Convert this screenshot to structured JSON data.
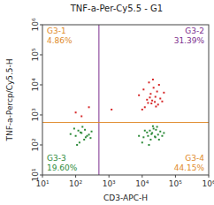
{
  "chart_data": {
    "type": "scatter",
    "title": "TNF-a-Per-Cy5.5 - G1",
    "x_label": "CD3-APC-H",
    "y_label": "TNF-a-Percp/Cy5.5-H",
    "log": true,
    "xlim": [
      10,
      1000000
    ],
    "ylim": [
      10,
      1000000
    ],
    "xticks": [
      {
        "value": 10,
        "label": "10¹"
      },
      {
        "value": 100,
        "label": "10²"
      },
      {
        "value": 1000,
        "label": "10³"
      },
      {
        "value": 10000,
        "label": "10⁴"
      },
      {
        "value": 100000,
        "label": "10⁵"
      },
      {
        "value": 1000000,
        "label": "10⁶"
      }
    ],
    "yticks": [
      {
        "value": 10,
        "label": "10¹"
      },
      {
        "value": 100,
        "label": "10²"
      },
      {
        "value": 1000,
        "label": "10³"
      },
      {
        "value": 10000,
        "label": "10⁴"
      },
      {
        "value": 100000,
        "label": "10⁵"
      },
      {
        "value": 1000000,
        "label": "10⁶"
      }
    ],
    "gate": {
      "x": 500,
      "y": 560,
      "x_color": "#7b2d8e",
      "y_color": "#e08a2a"
    },
    "quadrants": {
      "names": [
        "G3-1",
        "G3-2",
        "G3-3",
        "G3-4"
      ],
      "values": [
        4.86,
        31.39,
        19.6,
        44.15
      ],
      "value_labels": [
        "4.86%",
        "31.39%",
        "19.60%",
        "44.15%"
      ],
      "colors": [
        "#e08a2a",
        "#7b2d8e",
        "#2e8b3a",
        "#e08a2a"
      ]
    },
    "series": [
      {
        "color": "#d62728",
        "marker": "dot",
        "x": [
          15000,
          20000,
          25000,
          12000,
          30000,
          18000,
          22000,
          10000,
          35000,
          28000,
          16000,
          40000,
          14000,
          26000,
          19000,
          8000,
          32000,
          21000,
          24000,
          17000,
          45000,
          11000,
          1200,
          100,
          150,
          250
        ],
        "values": [
          2500,
          3000,
          4000,
          1800,
          2200,
          5000,
          8000,
          1500,
          3500,
          6000,
          12000,
          2800,
          3200,
          1900,
          2400,
          4500,
          10000,
          15000,
          2700,
          3800,
          5500,
          7000,
          1500,
          1200,
          900,
          1800
        ]
      },
      {
        "color": "#2e8b3a",
        "marker": "dot",
        "x": [
          15000,
          20000,
          25000,
          12000,
          30000,
          18000,
          22000,
          10000,
          35000,
          28000,
          16000,
          40000,
          14000,
          26000,
          19000,
          8000,
          32000,
          21000,
          24000,
          17000,
          45000,
          11000,
          100,
          150,
          200,
          120,
          250,
          180,
          90,
          130,
          300,
          160,
          110,
          220,
          140,
          70,
          190,
          280
        ],
        "values": [
          200,
          250,
          180,
          300,
          220,
          150,
          350,
          120,
          280,
          400,
          100,
          200,
          260,
          320,
          230,
          200,
          150,
          420,
          190,
          300,
          250,
          180,
          200,
          250,
          180,
          300,
          220,
          150,
          350,
          120,
          280,
          400,
          100,
          200,
          260,
          230,
          320,
          170
        ]
      }
    ]
  }
}
